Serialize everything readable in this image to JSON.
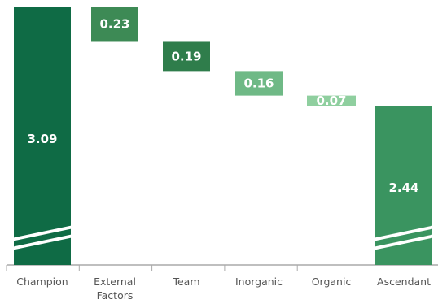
{
  "chart_data": {
    "type": "bar",
    "subtype": "waterfall",
    "categories": [
      "Champion",
      "External Factors",
      "Team",
      "Inorganic",
      "Organic",
      "Ascendant"
    ],
    "category_lines": [
      [
        "Champion"
      ],
      [
        "External",
        "Factors"
      ],
      [
        "Team"
      ],
      [
        "Inorganic"
      ],
      [
        "Organic"
      ],
      [
        "Ascendant"
      ]
    ],
    "values": [
      3.09,
      0.23,
      0.19,
      0.16,
      0.07,
      2.44
    ],
    "value_labels": [
      "3.09",
      "0.23",
      "0.19",
      "0.16",
      "0.07",
      "2.44"
    ],
    "kinds": [
      "total",
      "decrease",
      "decrease",
      "decrease",
      "decrease",
      "total"
    ],
    "title": "",
    "xlabel": "",
    "ylabel": "",
    "axis_break": true,
    "grid": false,
    "legend": "none",
    "colors": {
      "total_start": "#0f6b45",
      "total_end": "#3a9460",
      "step_1": "#3d8a55",
      "step_2": "#2f7d4b",
      "step_3": "#6fb986",
      "step_4": "#8fcf9f",
      "axis": "#aaaaaa",
      "label": "#555555"
    }
  }
}
